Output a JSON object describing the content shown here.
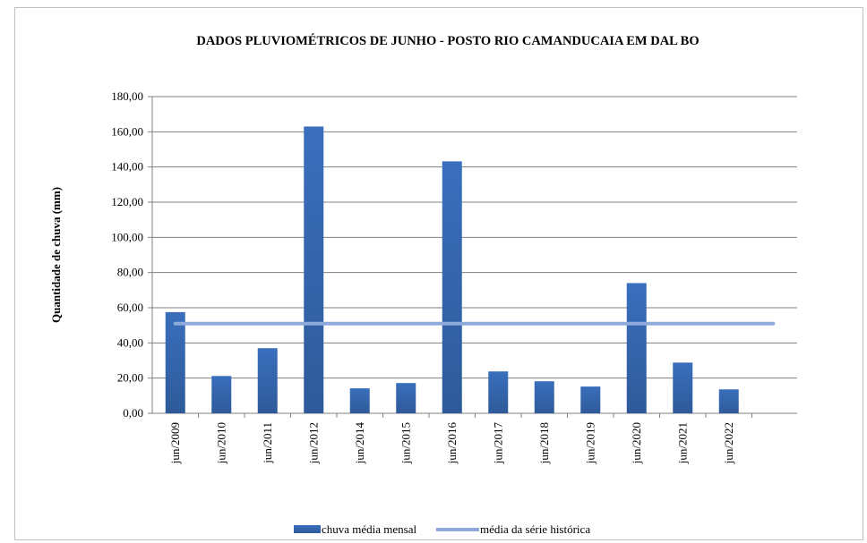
{
  "chart_data": {
    "type": "bar",
    "title": "DADOS PLUVIOMÉTRICOS DE JUNHO - POSTO RIO CAMANDUCAIA EM DAL BO",
    "xlabel": "",
    "ylabel": "Quantidade de chuva (mm)",
    "ylim": [
      0,
      180
    ],
    "yticks": [
      "0,00",
      "20,00",
      "40,00",
      "60,00",
      "80,00",
      "100,00",
      "120,00",
      "140,00",
      "160,00",
      "180,00"
    ],
    "ytick_values": [
      0,
      20,
      40,
      60,
      80,
      100,
      120,
      140,
      160,
      180
    ],
    "grid": true,
    "legend_position": "bottom",
    "categories": [
      "jun/2009",
      "jun/2010",
      "jun/2011",
      "jun/2012",
      "jun/2014",
      "jun/2015",
      "jun/2016",
      "jun/2017",
      "jun/2018",
      "jun/2019",
      "jun/2020",
      "jun/2021",
      "jun/2022"
    ],
    "series": [
      {
        "name": "chuva média mensal",
        "type": "bar",
        "color": "#2e5a99",
        "values": [
          57.5,
          21.2,
          37.0,
          163.0,
          14.2,
          17.2,
          143.2,
          23.8,
          18.2,
          15.2,
          74.0,
          28.8,
          13.6
        ]
      },
      {
        "name": "média da série histórica",
        "type": "line",
        "color": "#8eaadb",
        "value": 51.0
      }
    ]
  }
}
